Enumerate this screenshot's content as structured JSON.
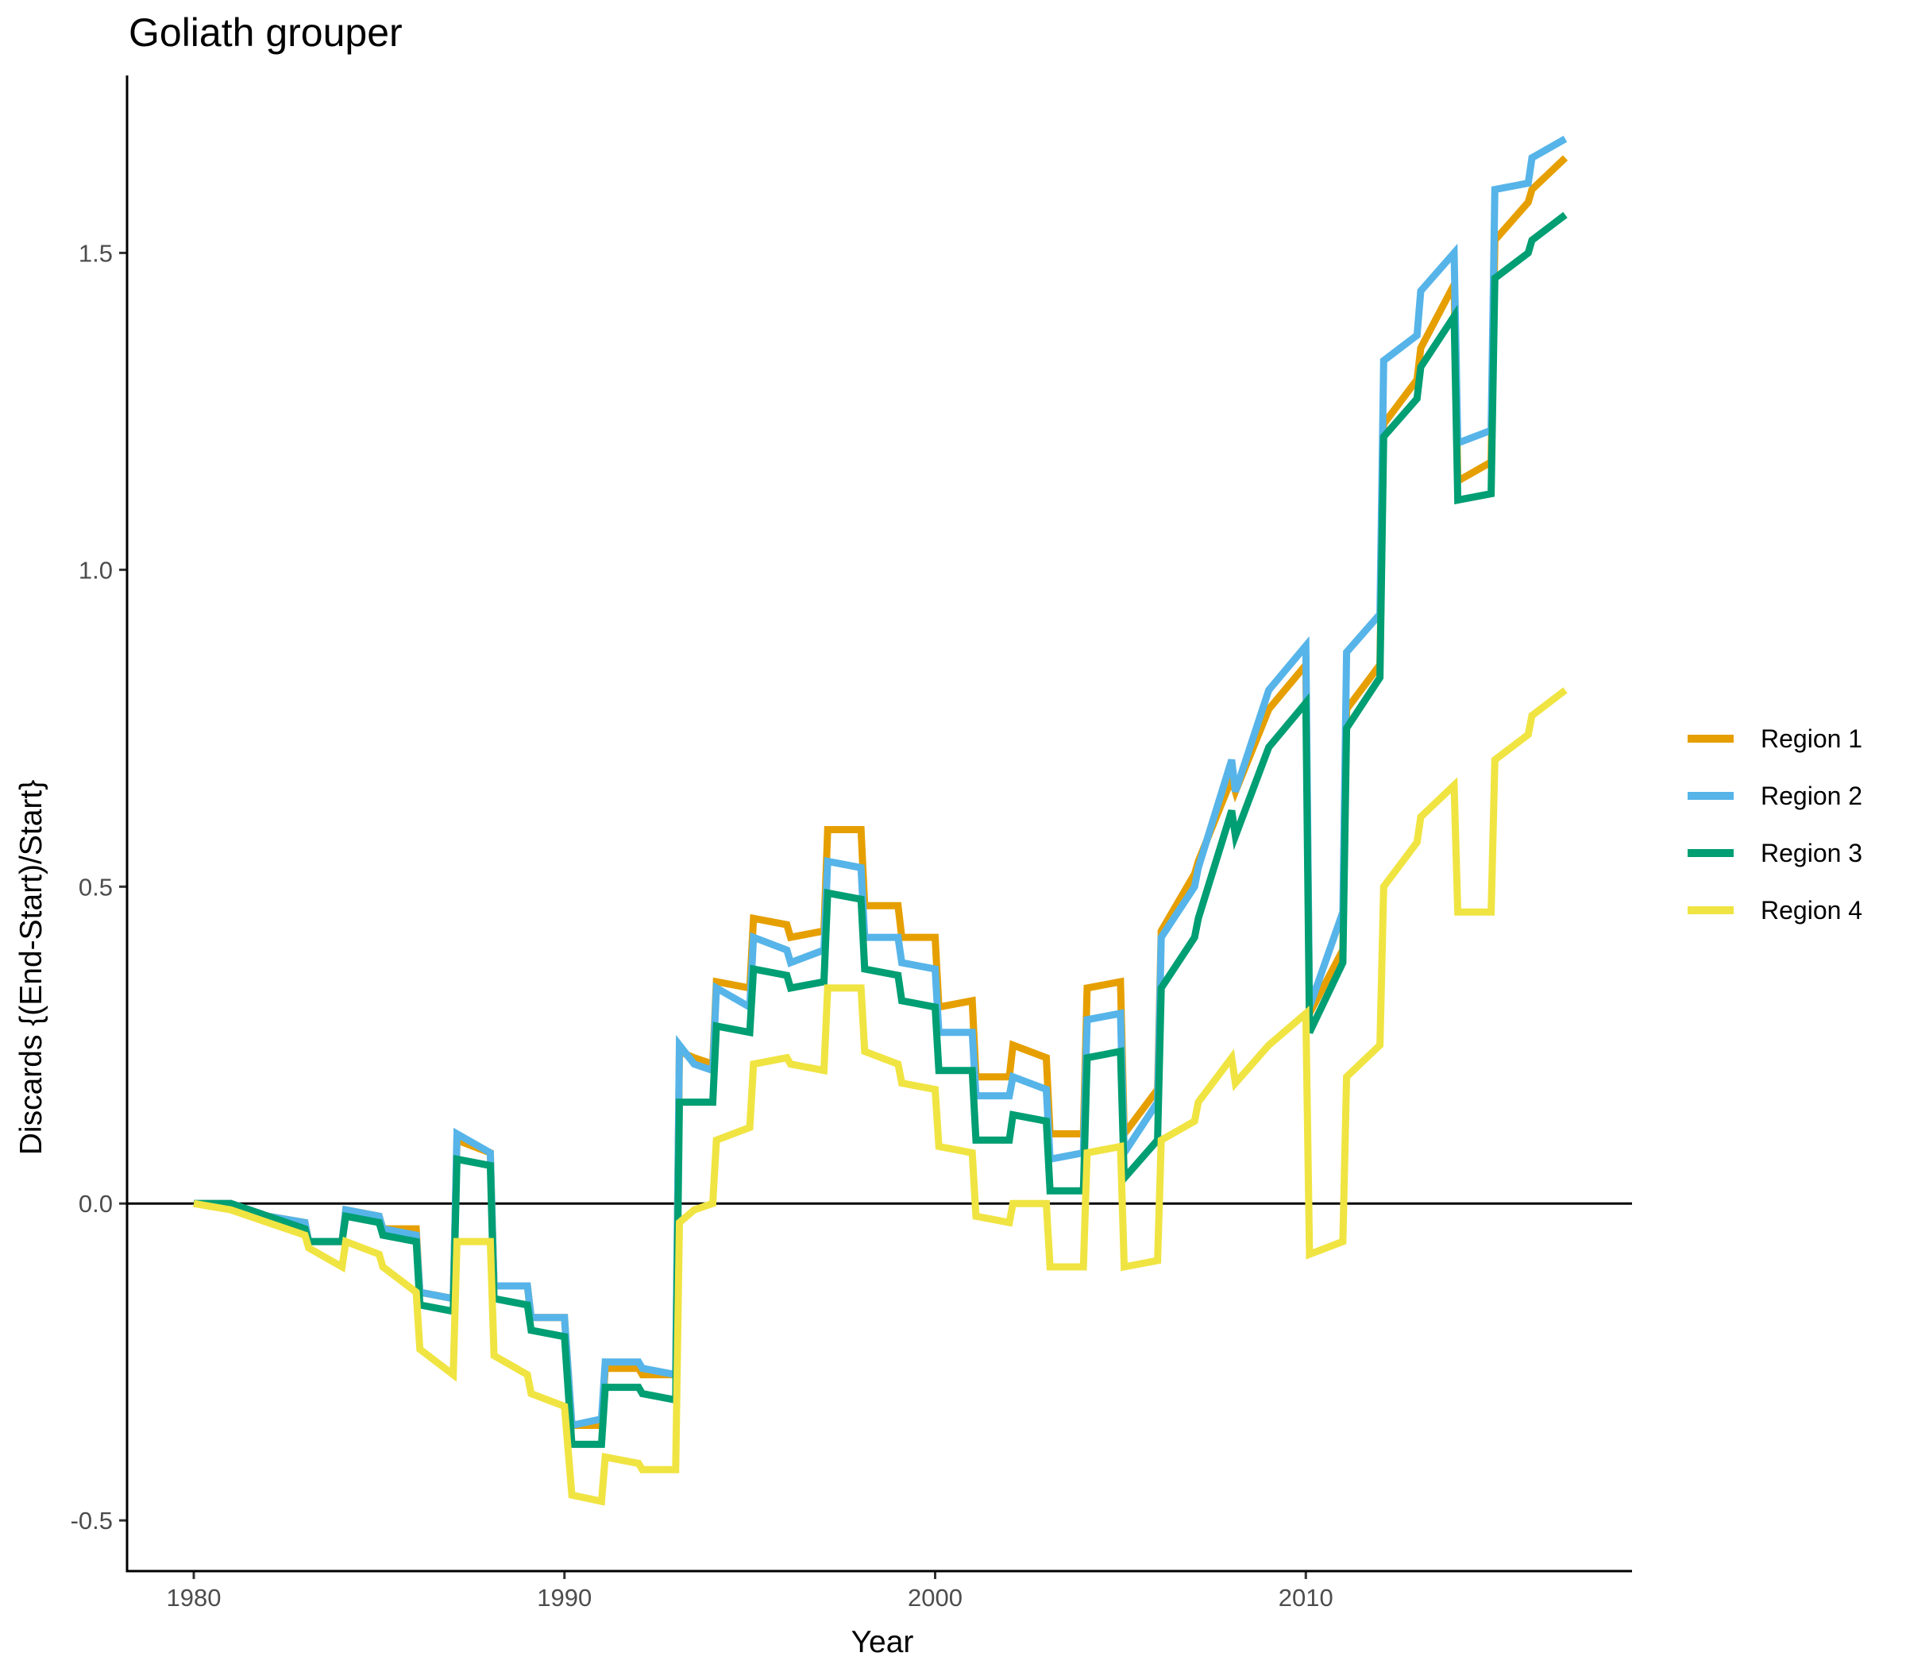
{
  "chart_data": {
    "type": "line",
    "title": "Goliath grouper",
    "xlabel": "Year",
    "ylabel": "Discards {(End-Start)/Start}",
    "xlim": [
      1978.2,
      2018.8
    ],
    "ylim": [
      -0.58,
      1.78
    ],
    "xticks": [
      1980,
      1990,
      2000,
      2010
    ],
    "xtick_labels": [
      "1980",
      "1990",
      "2000",
      "2010"
    ],
    "yticks": [
      -0.5,
      0,
      0.5,
      1,
      1.5
    ],
    "ytick_labels": [
      "-0.5",
      "0.0",
      "0.5",
      "1.0",
      "1.5"
    ],
    "hline": 0,
    "grid": false,
    "legend_position": "right",
    "series": [
      {
        "name": "Region 1",
        "color": "#E69F00",
        "points": [
          [
            1980,
            0
          ],
          [
            1981,
            0
          ],
          [
            1982,
            -0.02
          ],
          [
            1983,
            -0.03
          ],
          [
            1983.1,
            -0.06
          ],
          [
            1984,
            -0.06
          ],
          [
            1984.1,
            -0.01
          ],
          [
            1985,
            -0.02
          ],
          [
            1985.1,
            -0.04
          ],
          [
            1986,
            -0.04
          ],
          [
            1986.1,
            -0.14
          ],
          [
            1987,
            -0.15
          ],
          [
            1987.1,
            0.1
          ],
          [
            1988,
            0.08
          ],
          [
            1988.1,
            -0.13
          ],
          [
            1989,
            -0.13
          ],
          [
            1989.1,
            -0.18
          ],
          [
            1990,
            -0.18
          ],
          [
            1990.2,
            -0.35
          ],
          [
            1991,
            -0.35
          ],
          [
            1991.1,
            -0.26
          ],
          [
            1992,
            -0.26
          ],
          [
            1992.1,
            -0.27
          ],
          [
            1993,
            -0.27
          ],
          [
            1993.1,
            0.24
          ],
          [
            1993.5,
            0.23
          ],
          [
            1994,
            0.22
          ],
          [
            1994.1,
            0.35
          ],
          [
            1995,
            0.34
          ],
          [
            1995.1,
            0.45
          ],
          [
            1996,
            0.44
          ],
          [
            1996.1,
            0.42
          ],
          [
            1997,
            0.43
          ],
          [
            1997.1,
            0.59
          ],
          [
            1998,
            0.59
          ],
          [
            1998.1,
            0.47
          ],
          [
            1999,
            0.47
          ],
          [
            1999.1,
            0.42
          ],
          [
            2000,
            0.42
          ],
          [
            2000.1,
            0.31
          ],
          [
            2001,
            0.32
          ],
          [
            2001.1,
            0.2
          ],
          [
            2002,
            0.2
          ],
          [
            2002.1,
            0.25
          ],
          [
            2003,
            0.23
          ],
          [
            2003.1,
            0.11
          ],
          [
            2004,
            0.11
          ],
          [
            2004.1,
            0.34
          ],
          [
            2005,
            0.35
          ],
          [
            2005.1,
            0.11
          ],
          [
            2006,
            0.18
          ],
          [
            2006.1,
            0.43
          ],
          [
            2007,
            0.52
          ],
          [
            2007.1,
            0.54
          ],
          [
            2008,
            0.67
          ],
          [
            2008.1,
            0.65
          ],
          [
            2009,
            0.78
          ],
          [
            2010,
            0.85
          ],
          [
            2010.1,
            0.3
          ],
          [
            2011,
            0.4
          ],
          [
            2011.1,
            0.78
          ],
          [
            2012,
            0.85
          ],
          [
            2012.1,
            1.23
          ],
          [
            2013,
            1.3
          ],
          [
            2013.1,
            1.35
          ],
          [
            2014,
            1.45
          ],
          [
            2014.1,
            1.14
          ],
          [
            2015,
            1.17
          ],
          [
            2015.1,
            1.52
          ],
          [
            2016,
            1.58
          ],
          [
            2016.1,
            1.6
          ],
          [
            2017,
            1.65
          ]
        ]
      },
      {
        "name": "Region 2",
        "color": "#56B4E9",
        "points": [
          [
            1980,
            0
          ],
          [
            1981,
            0
          ],
          [
            1982,
            -0.02
          ],
          [
            1983,
            -0.03
          ],
          [
            1983.1,
            -0.06
          ],
          [
            1984,
            -0.06
          ],
          [
            1984.1,
            -0.01
          ],
          [
            1985,
            -0.02
          ],
          [
            1985.1,
            -0.04
          ],
          [
            1986,
            -0.05
          ],
          [
            1986.1,
            -0.14
          ],
          [
            1987,
            -0.15
          ],
          [
            1987.1,
            0.11
          ],
          [
            1988,
            0.08
          ],
          [
            1988.1,
            -0.13
          ],
          [
            1989,
            -0.13
          ],
          [
            1989.1,
            -0.18
          ],
          [
            1990,
            -0.18
          ],
          [
            1990.2,
            -0.35
          ],
          [
            1991,
            -0.34
          ],
          [
            1991.1,
            -0.25
          ],
          [
            1992,
            -0.25
          ],
          [
            1992.1,
            -0.26
          ],
          [
            1993,
            -0.27
          ],
          [
            1993.1,
            0.25
          ],
          [
            1993.5,
            0.22
          ],
          [
            1994,
            0.21
          ],
          [
            1994.1,
            0.34
          ],
          [
            1995,
            0.31
          ],
          [
            1995.1,
            0.42
          ],
          [
            1996,
            0.4
          ],
          [
            1996.1,
            0.38
          ],
          [
            1997,
            0.4
          ],
          [
            1997.1,
            0.54
          ],
          [
            1998,
            0.53
          ],
          [
            1998.1,
            0.42
          ],
          [
            1999,
            0.42
          ],
          [
            1999.1,
            0.38
          ],
          [
            2000,
            0.37
          ],
          [
            2000.1,
            0.27
          ],
          [
            2001,
            0.27
          ],
          [
            2001.1,
            0.17
          ],
          [
            2002,
            0.17
          ],
          [
            2002.1,
            0.2
          ],
          [
            2003,
            0.18
          ],
          [
            2003.1,
            0.07
          ],
          [
            2004,
            0.08
          ],
          [
            2004.1,
            0.29
          ],
          [
            2005,
            0.3
          ],
          [
            2005.1,
            0.08
          ],
          [
            2006,
            0.16
          ],
          [
            2006.1,
            0.42
          ],
          [
            2007,
            0.5
          ],
          [
            2007.1,
            0.53
          ],
          [
            2008,
            0.7
          ],
          [
            2008.1,
            0.65
          ],
          [
            2009,
            0.81
          ],
          [
            2010,
            0.88
          ],
          [
            2010.1,
            0.31
          ],
          [
            2011,
            0.46
          ],
          [
            2011.1,
            0.87
          ],
          [
            2012,
            0.93
          ],
          [
            2012.1,
            1.33
          ],
          [
            2013,
            1.37
          ],
          [
            2013.1,
            1.44
          ],
          [
            2014,
            1.5
          ],
          [
            2014.1,
            1.2
          ],
          [
            2015,
            1.22
          ],
          [
            2015.1,
            1.6
          ],
          [
            2016,
            1.61
          ],
          [
            2016.1,
            1.65
          ],
          [
            2017,
            1.68
          ]
        ]
      },
      {
        "name": "Region 3",
        "color": "#009E73",
        "points": [
          [
            1980,
            0
          ],
          [
            1981,
            0
          ],
          [
            1982,
            -0.02
          ],
          [
            1983,
            -0.04
          ],
          [
            1983.1,
            -0.06
          ],
          [
            1984,
            -0.06
          ],
          [
            1984.1,
            -0.02
          ],
          [
            1985,
            -0.03
          ],
          [
            1985.1,
            -0.05
          ],
          [
            1986,
            -0.06
          ],
          [
            1986.1,
            -0.16
          ],
          [
            1987,
            -0.17
          ],
          [
            1987.1,
            0.07
          ],
          [
            1988,
            0.06
          ],
          [
            1988.1,
            -0.15
          ],
          [
            1989,
            -0.16
          ],
          [
            1989.1,
            -0.2
          ],
          [
            1990,
            -0.21
          ],
          [
            1990.2,
            -0.38
          ],
          [
            1991,
            -0.38
          ],
          [
            1991.1,
            -0.29
          ],
          [
            1992,
            -0.29
          ],
          [
            1992.1,
            -0.3
          ],
          [
            1993,
            -0.31
          ],
          [
            1993.1,
            0.16
          ],
          [
            1994,
            0.16
          ],
          [
            1994.1,
            0.28
          ],
          [
            1995,
            0.27
          ],
          [
            1995.1,
            0.37
          ],
          [
            1996,
            0.36
          ],
          [
            1996.1,
            0.34
          ],
          [
            1997,
            0.35
          ],
          [
            1997.1,
            0.49
          ],
          [
            1998,
            0.48
          ],
          [
            1998.1,
            0.37
          ],
          [
            1999,
            0.36
          ],
          [
            1999.1,
            0.32
          ],
          [
            2000,
            0.31
          ],
          [
            2000.1,
            0.21
          ],
          [
            2001,
            0.21
          ],
          [
            2001.1,
            0.1
          ],
          [
            2002,
            0.1
          ],
          [
            2002.1,
            0.14
          ],
          [
            2003,
            0.13
          ],
          [
            2003.1,
            0.02
          ],
          [
            2004,
            0.02
          ],
          [
            2004.1,
            0.23
          ],
          [
            2005,
            0.24
          ],
          [
            2005.1,
            0.04
          ],
          [
            2006,
            0.1
          ],
          [
            2006.1,
            0.34
          ],
          [
            2007,
            0.42
          ],
          [
            2007.1,
            0.45
          ],
          [
            2008,
            0.62
          ],
          [
            2008.1,
            0.58
          ],
          [
            2009,
            0.72
          ],
          [
            2010,
            0.79
          ],
          [
            2010.1,
            0.27
          ],
          [
            2011,
            0.38
          ],
          [
            2011.1,
            0.75
          ],
          [
            2012,
            0.83
          ],
          [
            2012.1,
            1.21
          ],
          [
            2013,
            1.27
          ],
          [
            2013.1,
            1.32
          ],
          [
            2014,
            1.4
          ],
          [
            2014.1,
            1.11
          ],
          [
            2015,
            1.12
          ],
          [
            2015.1,
            1.46
          ],
          [
            2016,
            1.5
          ],
          [
            2016.1,
            1.52
          ],
          [
            2017,
            1.56
          ]
        ]
      },
      {
        "name": "Region 4",
        "color": "#F0E442",
        "points": [
          [
            1980,
            0
          ],
          [
            1981,
            -0.01
          ],
          [
            1982,
            -0.03
          ],
          [
            1983,
            -0.05
          ],
          [
            1983.1,
            -0.07
          ],
          [
            1984,
            -0.1
          ],
          [
            1984.1,
            -0.06
          ],
          [
            1985,
            -0.08
          ],
          [
            1985.1,
            -0.1
          ],
          [
            1986,
            -0.14
          ],
          [
            1986.1,
            -0.23
          ],
          [
            1987,
            -0.27
          ],
          [
            1987.1,
            -0.06
          ],
          [
            1988,
            -0.06
          ],
          [
            1988.1,
            -0.24
          ],
          [
            1989,
            -0.27
          ],
          [
            1989.1,
            -0.3
          ],
          [
            1990,
            -0.32
          ],
          [
            1990.2,
            -0.46
          ],
          [
            1991,
            -0.47
          ],
          [
            1991.1,
            -0.4
          ],
          [
            1992,
            -0.41
          ],
          [
            1992.1,
            -0.42
          ],
          [
            1993,
            -0.42
          ],
          [
            1993.1,
            -0.03
          ],
          [
            1993.5,
            -0.01
          ],
          [
            1994,
            0
          ],
          [
            1994.1,
            0.1
          ],
          [
            1995,
            0.12
          ],
          [
            1995.1,
            0.22
          ],
          [
            1996,
            0.23
          ],
          [
            1996.1,
            0.22
          ],
          [
            1997,
            0.21
          ],
          [
            1997.1,
            0.34
          ],
          [
            1998,
            0.34
          ],
          [
            1998.1,
            0.24
          ],
          [
            1999,
            0.22
          ],
          [
            1999.1,
            0.19
          ],
          [
            2000,
            0.18
          ],
          [
            2000.1,
            0.09
          ],
          [
            2001,
            0.08
          ],
          [
            2001.1,
            -0.02
          ],
          [
            2002,
            -0.03
          ],
          [
            2002.1,
            0
          ],
          [
            2003,
            0
          ],
          [
            2003.1,
            -0.1
          ],
          [
            2004,
            -0.1
          ],
          [
            2004.1,
            0.08
          ],
          [
            2005,
            0.09
          ],
          [
            2005.1,
            -0.1
          ],
          [
            2006,
            -0.09
          ],
          [
            2006.1,
            0.1
          ],
          [
            2007,
            0.13
          ],
          [
            2007.1,
            0.16
          ],
          [
            2008,
            0.23
          ],
          [
            2008.1,
            0.19
          ],
          [
            2009,
            0.25
          ],
          [
            2010,
            0.3
          ],
          [
            2010.1,
            -0.08
          ],
          [
            2011,
            -0.06
          ],
          [
            2011.1,
            0.2
          ],
          [
            2012,
            0.25
          ],
          [
            2012.1,
            0.5
          ],
          [
            2013,
            0.57
          ],
          [
            2013.1,
            0.61
          ],
          [
            2014,
            0.66
          ],
          [
            2014.1,
            0.46
          ],
          [
            2015,
            0.46
          ],
          [
            2015.1,
            0.7
          ],
          [
            2016,
            0.74
          ],
          [
            2016.1,
            0.77
          ],
          [
            2017,
            0.81
          ]
        ]
      }
    ]
  }
}
